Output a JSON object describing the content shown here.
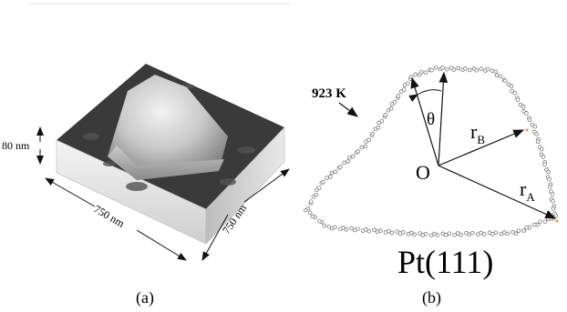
{
  "panel_a": {
    "height_scale": "80 nm",
    "edge_left": "750 nm",
    "edge_right": "750 nm",
    "caption": "(a)"
  },
  "panel_b": {
    "temperature": "923 K",
    "theta": "θ",
    "origin": "O",
    "rb_main": "r",
    "rb_sub": "B",
    "ra_main": "r",
    "ra_sub": "A",
    "surface": "Pt(111)",
    "caption": "(b)"
  },
  "colors": {
    "ink": "#111111",
    "dot_fill": "#ffffff",
    "dot_stroke": "#666666",
    "accent_dot": "#e0a060"
  }
}
